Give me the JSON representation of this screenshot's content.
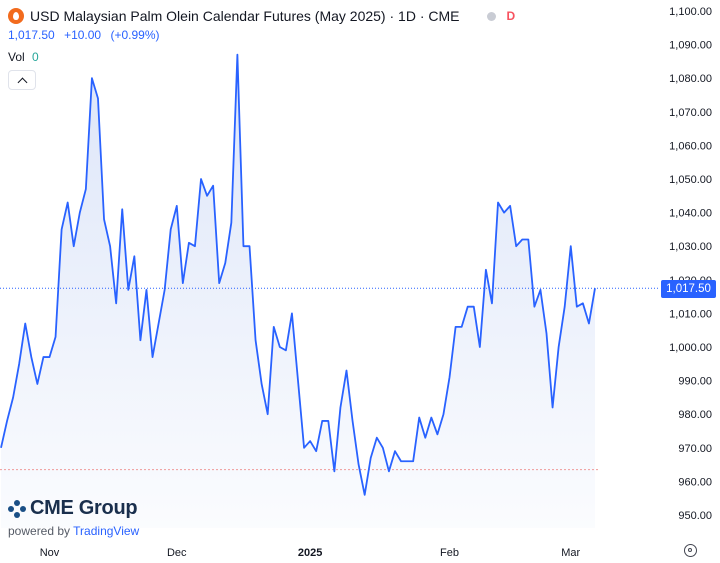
{
  "header": {
    "title": "USD Malaysian Palm Olein Calendar Futures (May 2025) · 1D · CME",
    "delay_badge": "D",
    "last_price": "1,017.50",
    "change": "+10.00",
    "change_pct": "(+0.99%)",
    "volume_label": "Vol",
    "volume_value": "0"
  },
  "price_badge": "1,017.50",
  "branding": {
    "logo_text": "CME Group",
    "powered_by": "powered by",
    "powered_brand": "TradingView"
  },
  "colors": {
    "line": "#2962ff",
    "area_top": "#dbe4f8",
    "badge": "#2962ff",
    "price_line": "#2962ff",
    "low_line": "#ef9a9a"
  },
  "chart_data": {
    "type": "area",
    "ylim": [
      945,
      1101
    ],
    "y_ticks": [
      "1,100.00",
      "1,090.00",
      "1,080.00",
      "1,070.00",
      "1,060.00",
      "1,050.00",
      "1,040.00",
      "1,030.00",
      "1,020.00",
      "1,010.00",
      "1,000.00",
      "990.00",
      "980.00",
      "970.00",
      "960.00",
      "950.00"
    ],
    "y_tick_values": [
      1100,
      1090,
      1080,
      1070,
      1060,
      1050,
      1040,
      1030,
      1020,
      1010,
      1000,
      990,
      980,
      970,
      960,
      950
    ],
    "x_labels": [
      {
        "label": "Nov",
        "index": 8
      },
      {
        "label": "Dec",
        "index": 29
      },
      {
        "label": "2025",
        "index": 51
      },
      {
        "label": "Feb",
        "index": 74
      },
      {
        "label": "Mar",
        "index": 94
      }
    ],
    "current_value": 1017.5,
    "low_reference": 963.5,
    "series": [
      {
        "values": [
          970,
          978,
          985,
          995,
          1007,
          997,
          989,
          997,
          997,
          1003,
          1035,
          1043,
          1030,
          1040,
          1047,
          1080,
          1074,
          1038,
          1030,
          1013,
          1041,
          1017,
          1027,
          1002,
          1017,
          997,
          1007,
          1017,
          1035,
          1042,
          1019,
          1031,
          1030,
          1050,
          1045,
          1048,
          1019,
          1025,
          1037,
          1087,
          1030,
          1030,
          1002,
          989,
          980,
          1006,
          1000,
          999,
          1010,
          990,
          970,
          972,
          969,
          978,
          978,
          963,
          982,
          993,
          978,
          965,
          956,
          967,
          973,
          970,
          963,
          969,
          966,
          966,
          966,
          979,
          973,
          979,
          974,
          980,
          991,
          1006,
          1006,
          1012,
          1012,
          1000,
          1023,
          1013,
          1043,
          1040,
          1042,
          1030,
          1032,
          1032,
          1012,
          1017,
          1004,
          982,
          1000,
          1012,
          1030,
          1012,
          1013,
          1007,
          1017.5
        ]
      }
    ]
  }
}
